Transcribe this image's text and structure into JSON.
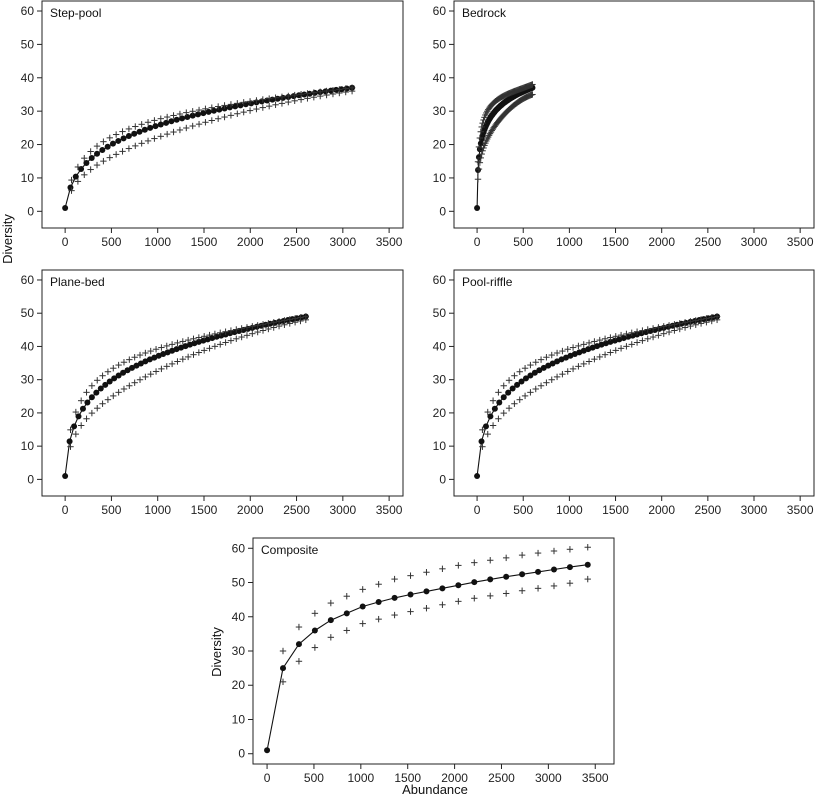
{
  "shared_labels": {
    "diversity_left": "Diversity",
    "diversity_composite": "Diversity",
    "abundance": "Abundance"
  },
  "chart_data": [
    {
      "type": "scatter",
      "panel": "top-left",
      "title": "Step-pool",
      "xlim": [
        -250,
        3650
      ],
      "ylim": [
        -5,
        63
      ],
      "x_ticks": [
        "0",
        "500",
        "1000",
        "1500",
        "2000",
        "2500",
        "3000",
        "3500"
      ],
      "y_ticks": [
        "0",
        "10",
        "20",
        "30",
        "40",
        "50",
        "60"
      ],
      "mean_n": 55,
      "max_x": 3100,
      "mean_end": 37,
      "k": 0.02,
      "lin": 0.03,
      "upper_n": 45,
      "upper_end": 37,
      "upper_shape": 0.5,
      "lower_n": 45,
      "lower_end": 36,
      "lower_shape": 1.4,
      "series": [
        {
          "name": "",
          "role": "rarefaction-mean"
        },
        {
          "name": "",
          "role": "upper-95-ci"
        },
        {
          "name": "",
          "role": "lower-95-ci"
        }
      ]
    },
    {
      "type": "scatter",
      "panel": "top-right",
      "title": "Bedrock",
      "xlim": [
        -250,
        3650
      ],
      "ylim": [
        -5,
        63
      ],
      "x_ticks": [
        "0",
        "500",
        "1000",
        "1500",
        "2000",
        "2500",
        "3000",
        "3500"
      ],
      "y_ticks": [
        "0",
        "10",
        "20",
        "30",
        "40",
        "50",
        "60"
      ],
      "mean_n": 60,
      "max_x": 600,
      "mean_end": 37,
      "k": 0.5,
      "lin": 0,
      "upper_n": 60,
      "upper_end": 38,
      "upper_shape": 0.7,
      "lower_n": 60,
      "lower_end": 35,
      "lower_shape": 1.3,
      "series": [
        {
          "name": "",
          "role": "rarefaction-mean"
        },
        {
          "name": "",
          "role": "upper-95-ci"
        },
        {
          "name": "",
          "role": "lower-95-ci"
        }
      ]
    },
    {
      "type": "scatter",
      "panel": "middle-left",
      "title": "Plane-bed",
      "xlim": [
        -250,
        3650
      ],
      "ylim": [
        -5,
        63
      ],
      "x_ticks": [
        "0",
        "500",
        "1000",
        "1500",
        "2000",
        "2500",
        "3000",
        "3500"
      ],
      "y_ticks": [
        "0",
        "10",
        "20",
        "30",
        "40",
        "50",
        "60"
      ],
      "mean_n": 55,
      "max_x": 2600,
      "mean_end": 49,
      "k": 0.05,
      "lin": 0.04,
      "upper_n": 45,
      "upper_end": 49,
      "upper_shape": 0.55,
      "lower_n": 45,
      "lower_end": 48,
      "lower_shape": 1.35,
      "series": [
        {
          "name": "",
          "role": "rarefaction-mean"
        },
        {
          "name": "",
          "role": "upper-95-ci"
        },
        {
          "name": "",
          "role": "lower-95-ci"
        }
      ]
    },
    {
      "type": "scatter",
      "panel": "middle-right",
      "title": "Pool-riffle",
      "xlim": [
        -250,
        3650
      ],
      "ylim": [
        -5,
        63
      ],
      "x_ticks": [
        "0",
        "500",
        "1000",
        "1500",
        "2000",
        "2500",
        "3000",
        "3500"
      ],
      "y_ticks": [
        "0",
        "10",
        "20",
        "30",
        "40",
        "50",
        "60"
      ],
      "mean_n": 55,
      "max_x": 2600,
      "mean_end": 49,
      "k": 0.05,
      "lin": 0.04,
      "upper_n": 45,
      "upper_end": 49,
      "upper_shape": 0.55,
      "lower_n": 45,
      "lower_end": 48,
      "lower_shape": 1.35,
      "series": [
        {
          "name": "",
          "role": "rarefaction-mean"
        },
        {
          "name": "",
          "role": "upper-95-ci"
        },
        {
          "name": "",
          "role": "lower-95-ci"
        }
      ]
    },
    {
      "type": "scatter",
      "panel": "bottom-center",
      "title": "Composite",
      "xlim": [
        -150,
        3700
      ],
      "ylim": [
        -3,
        63
      ],
      "x_ticks": [
        "0",
        "500",
        "1000",
        "1500",
        "2000",
        "2500",
        "3000",
        "3500"
      ],
      "y_ticks": [
        "0",
        "10",
        "20",
        "30",
        "40",
        "50",
        "60"
      ],
      "series": [
        {
          "name": "",
          "role": "rarefaction-mean",
          "x": [
            0,
            170,
            340,
            510,
            680,
            850,
            1020,
            1190,
            1360,
            1530,
            1700,
            1870,
            2040,
            2210,
            2380,
            2550,
            2720,
            2890,
            3060,
            3230,
            3420
          ],
          "y": [
            1,
            25,
            32,
            36,
            39,
            41,
            43,
            44.3,
            45.5,
            46.5,
            47.4,
            48.3,
            49.2,
            50.1,
            50.9,
            51.7,
            52.4,
            53.1,
            53.8,
            54.5,
            55.2
          ]
        },
        {
          "name": "",
          "role": "upper-95-ci",
          "x": [
            170,
            340,
            510,
            680,
            850,
            1020,
            1190,
            1360,
            1530,
            1700,
            1870,
            2040,
            2210,
            2380,
            2550,
            2720,
            2890,
            3060,
            3230,
            3420
          ],
          "y": [
            30,
            37,
            41,
            44,
            46,
            48,
            49.5,
            51,
            52,
            53,
            54,
            55,
            55.8,
            56.5,
            57.2,
            58,
            58.6,
            59.2,
            59.7,
            60.3
          ]
        },
        {
          "name": "",
          "role": "lower-95-ci",
          "x": [
            170,
            340,
            510,
            680,
            850,
            1020,
            1190,
            1360,
            1530,
            1700,
            1870,
            2040,
            2210,
            2380,
            2550,
            2720,
            2890,
            3060,
            3230,
            3420
          ],
          "y": [
            21,
            27,
            31,
            34,
            36,
            38,
            39.3,
            40.5,
            41.5,
            42.5,
            43.5,
            44.5,
            45.4,
            46.1,
            46.8,
            47.6,
            48.3,
            49,
            49.8,
            51
          ]
        }
      ]
    }
  ]
}
